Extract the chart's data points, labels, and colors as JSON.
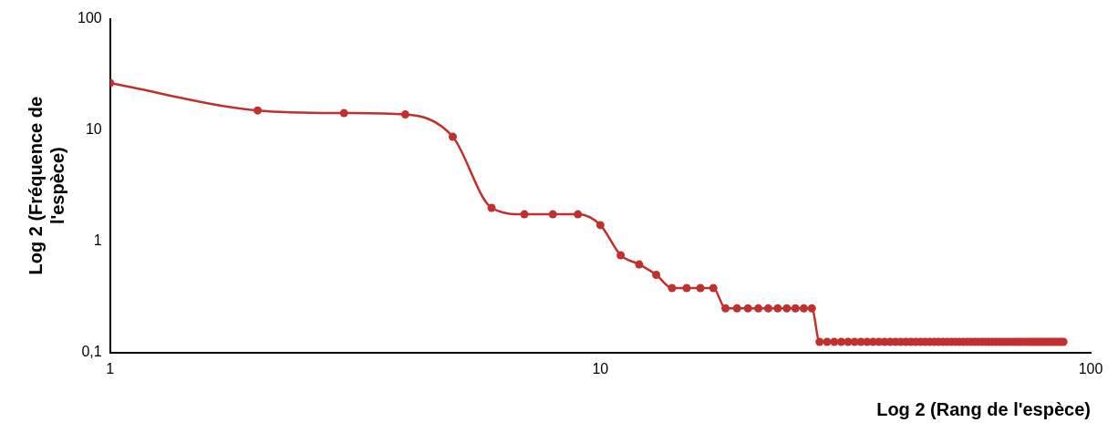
{
  "chart_data": {
    "type": "line",
    "xlabel": "Log 2 (Rang de l'espèce)",
    "ylabel": "Log 2 (Fréquence de l'espèce)",
    "log": "xy",
    "grid": false,
    "marker": "circle",
    "line_style": "solid",
    "xlim": [
      1,
      100
    ],
    "xticks": [
      1,
      10,
      100
    ],
    "ylim": [
      0.1,
      100
    ],
    "yticks": [
      {
        "value": 0.1,
        "label": "0,1"
      },
      1,
      10,
      100
    ],
    "series": [
      {
        "color": "#c0302f",
        "x": [
          1,
          2,
          3,
          4,
          5,
          6,
          7,
          8,
          9,
          10,
          11,
          12,
          13,
          14,
          15,
          16,
          17,
          18,
          19,
          20,
          21,
          22,
          23,
          24,
          25,
          26,
          27,
          28,
          29,
          30,
          31,
          32,
          33,
          34,
          35,
          36,
          37,
          38,
          39,
          40,
          41,
          42,
          43,
          44,
          45,
          46,
          47,
          48,
          49,
          50,
          51,
          52,
          53,
          54,
          55,
          56,
          57,
          58,
          59,
          60,
          61,
          62,
          63,
          64,
          65,
          66,
          67,
          68,
          69,
          70,
          71,
          72,
          73,
          74,
          75,
          76,
          77,
          78,
          79,
          80,
          81,
          82,
          83,
          84,
          85,
          86,
          87,
          88
        ],
        "values": [
          26.5,
          15,
          14.2,
          13.8,
          8.7,
          2,
          1.75,
          1.75,
          1.75,
          1.4,
          0.75,
          0.62,
          0.5,
          0.38,
          0.38,
          0.38,
          0.38,
          0.25,
          0.25,
          0.25,
          0.25,
          0.25,
          0.25,
          0.25,
          0.25,
          0.25,
          0.25,
          0.125,
          0.125,
          0.125,
          0.125,
          0.125,
          0.125,
          0.125,
          0.125,
          0.125,
          0.125,
          0.125,
          0.125,
          0.125,
          0.125,
          0.125,
          0.125,
          0.125,
          0.125,
          0.125,
          0.125,
          0.125,
          0.125,
          0.125,
          0.125,
          0.125,
          0.125,
          0.125,
          0.125,
          0.125,
          0.125,
          0.125,
          0.125,
          0.125,
          0.125,
          0.125,
          0.125,
          0.125,
          0.125,
          0.125,
          0.125,
          0.125,
          0.125,
          0.125,
          0.125,
          0.125,
          0.125,
          0.125,
          0.125,
          0.125,
          0.125,
          0.125,
          0.125,
          0.125,
          0.125,
          0.125,
          0.125,
          0.125,
          0.125,
          0.125,
          0.125,
          0.125
        ]
      }
    ]
  }
}
